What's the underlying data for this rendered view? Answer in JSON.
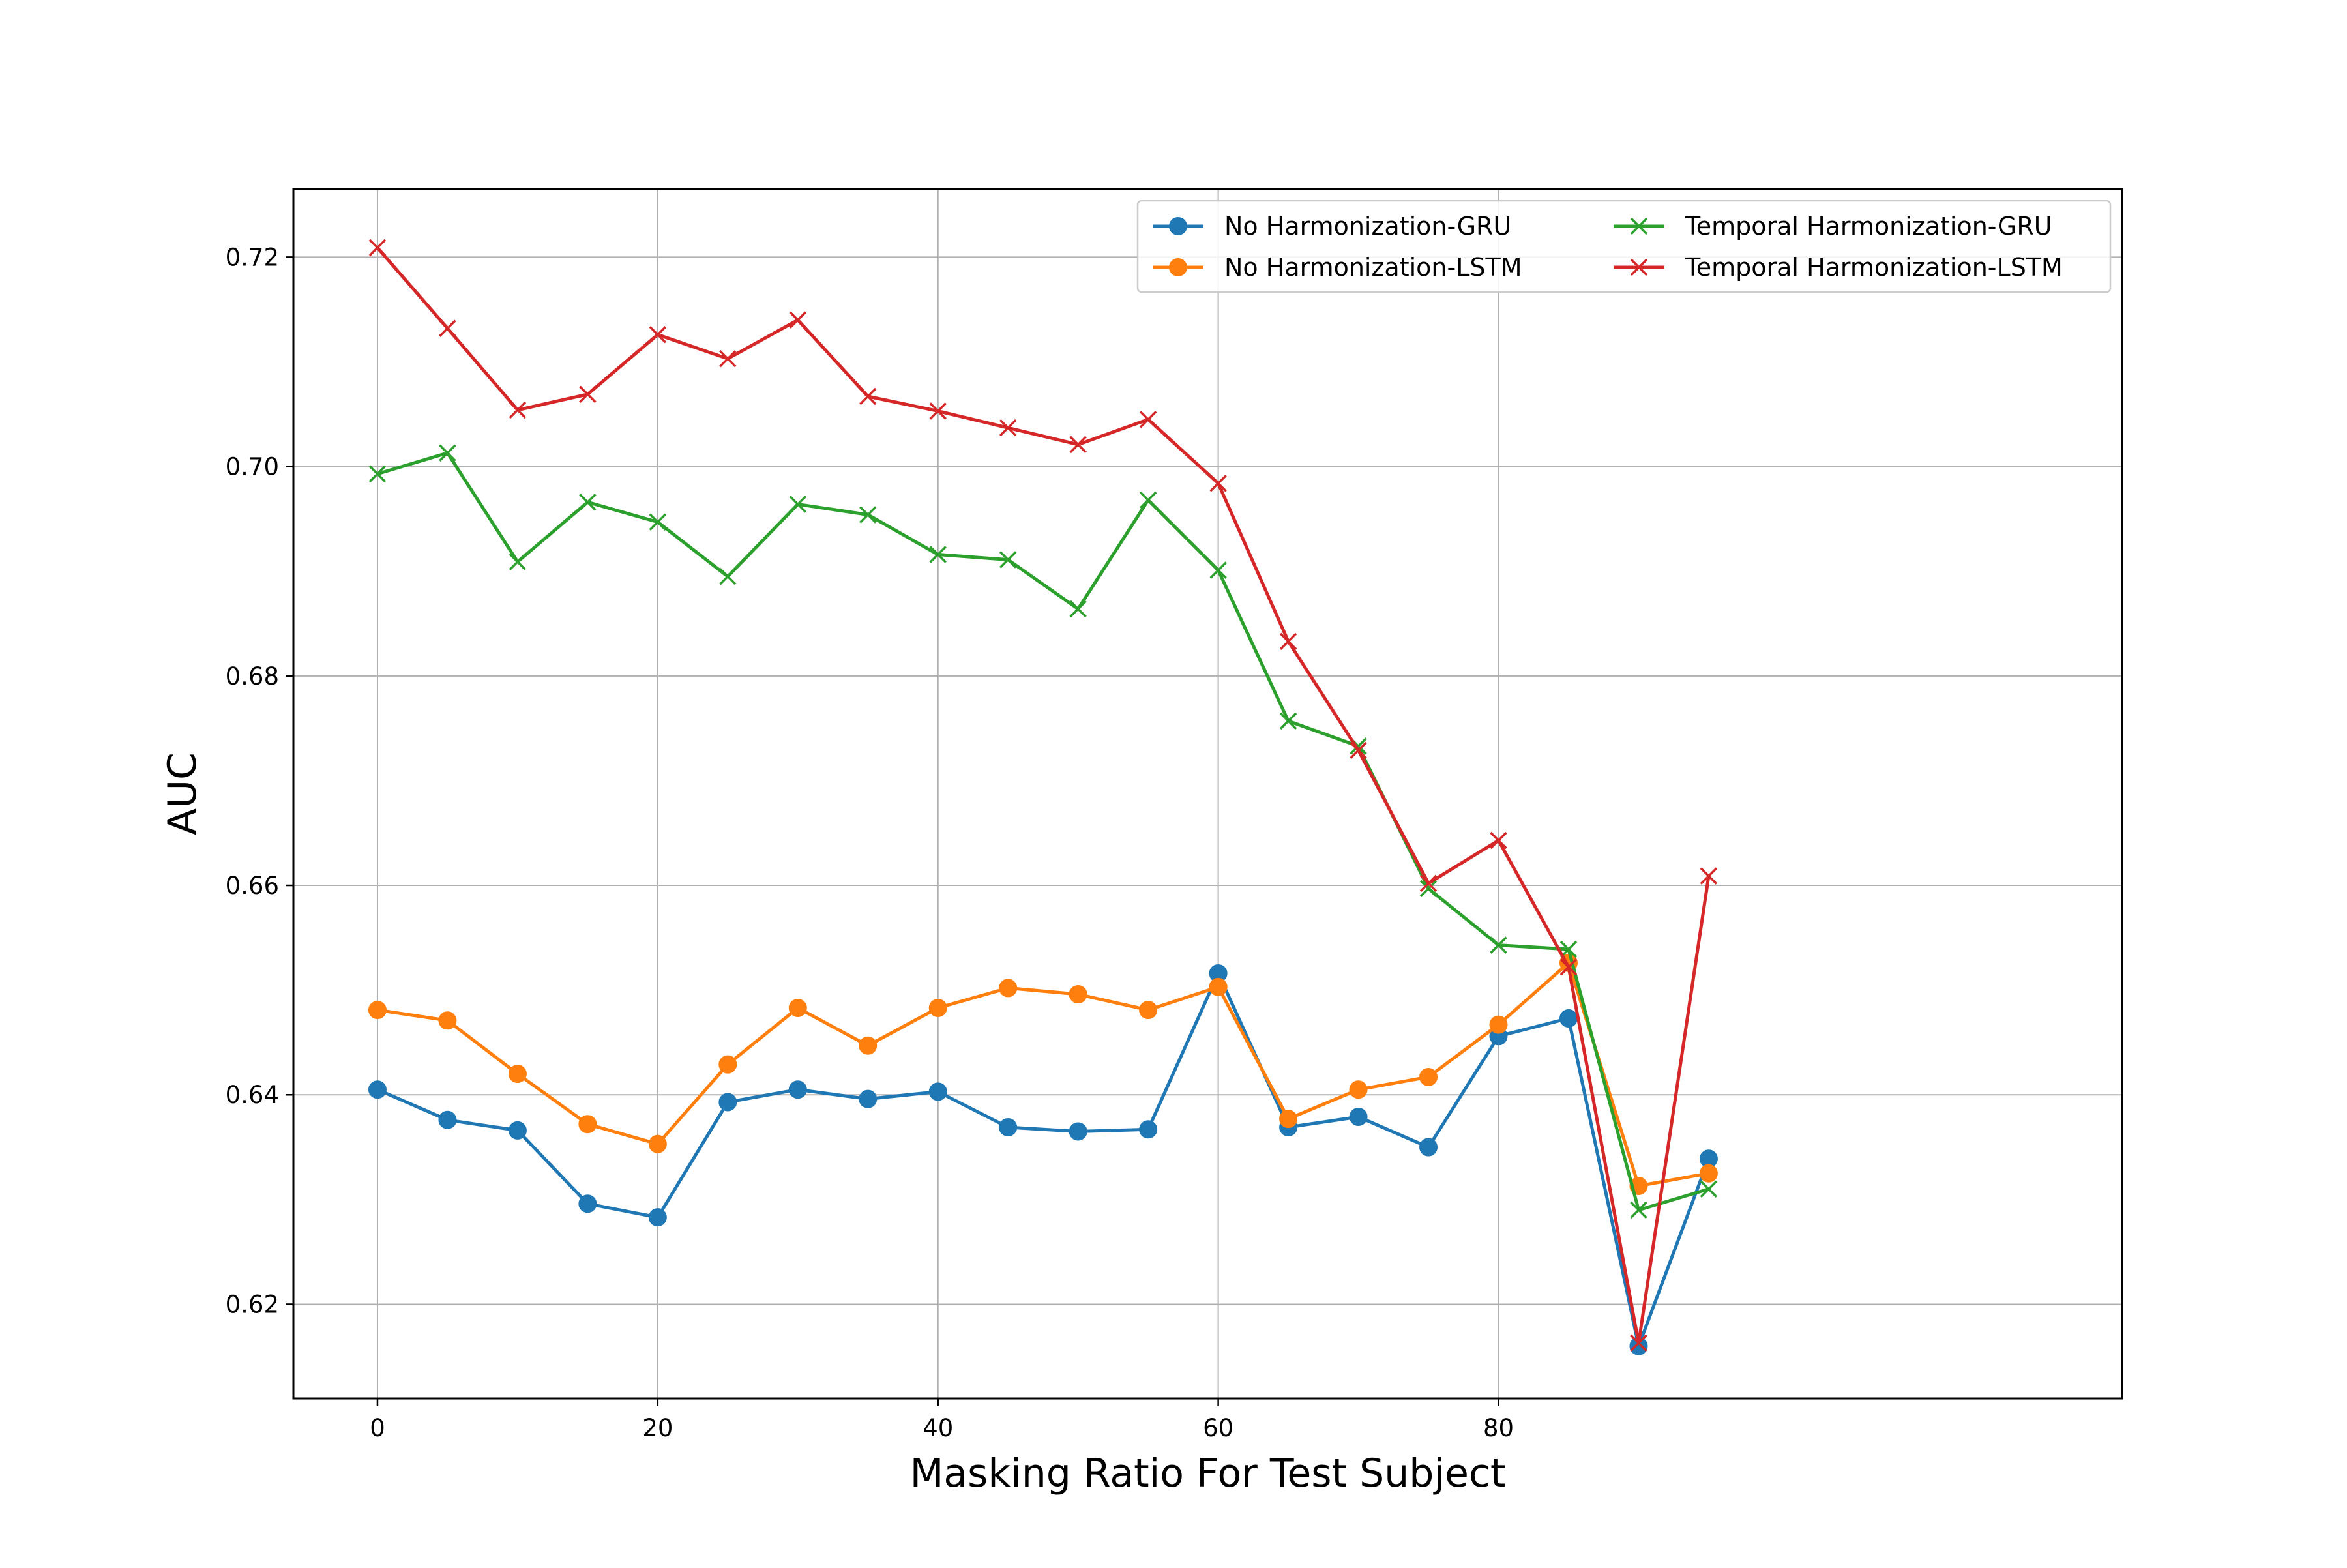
{
  "chart_data": {
    "type": "line",
    "title": "",
    "xlabel": "Masking Ratio For Test Subject",
    "ylabel": "AUC",
    "xlim": [
      -6,
      124.5
    ],
    "ylim": [
      0.611,
      0.7265
    ],
    "xticks": [
      0,
      20,
      40,
      60,
      80
    ],
    "yticks": [
      0.62,
      0.64,
      0.66,
      0.68,
      0.7,
      0.72
    ],
    "ytick_labels": [
      "0.62",
      "0.64",
      "0.66",
      "0.68",
      "0.70",
      "0.72"
    ],
    "grid": true,
    "legend_position": "top-right",
    "legend_columns": 2,
    "x": [
      0,
      5,
      10,
      15,
      20,
      25,
      30,
      35,
      40,
      45,
      50,
      55,
      60,
      65,
      70,
      75,
      80,
      85,
      90,
      95
    ],
    "series": [
      {
        "name": "No Harmonization-GRU",
        "color": "#1f77b4",
        "marker": "circle",
        "values": [
          0.6405,
          0.6376,
          0.6366,
          0.6296,
          0.6283,
          0.6393,
          0.6405,
          0.6396,
          0.6403,
          0.6369,
          0.6365,
          0.6367,
          0.6516,
          0.6369,
          0.6379,
          0.635,
          0.6456,
          0.6473,
          0.616,
          0.6339
        ]
      },
      {
        "name": "No Harmonization-LSTM",
        "color": "#ff7f0e",
        "marker": "circle",
        "values": [
          0.6481,
          0.6471,
          0.642,
          0.6372,
          0.6353,
          0.6429,
          0.6483,
          0.6447,
          0.6483,
          0.6502,
          0.6496,
          0.6481,
          0.6503,
          0.6377,
          0.6405,
          0.6417,
          0.6467,
          0.6526,
          0.6313,
          0.6325
        ]
      },
      {
        "name": "Temporal Harmonization-GRU",
        "color": "#2ca02c",
        "marker": "x",
        "values": [
          0.6993,
          0.7013,
          0.6909,
          0.6966,
          0.6947,
          0.6895,
          0.6964,
          0.6954,
          0.6916,
          0.6911,
          0.6864,
          0.6968,
          0.6901,
          0.6757,
          0.6733,
          0.6597,
          0.6543,
          0.6539,
          0.629,
          0.631
        ]
      },
      {
        "name": "Temporal Harmonization-LSTM",
        "color": "#d62728",
        "marker": "x",
        "values": [
          0.7209,
          0.7132,
          0.7054,
          0.7069,
          0.7126,
          0.7103,
          0.714,
          0.7067,
          0.7053,
          0.7037,
          0.7021,
          0.7045,
          0.6984,
          0.6833,
          0.6729,
          0.6602,
          0.6643,
          0.6522,
          0.6163,
          0.6609
        ]
      }
    ]
  }
}
